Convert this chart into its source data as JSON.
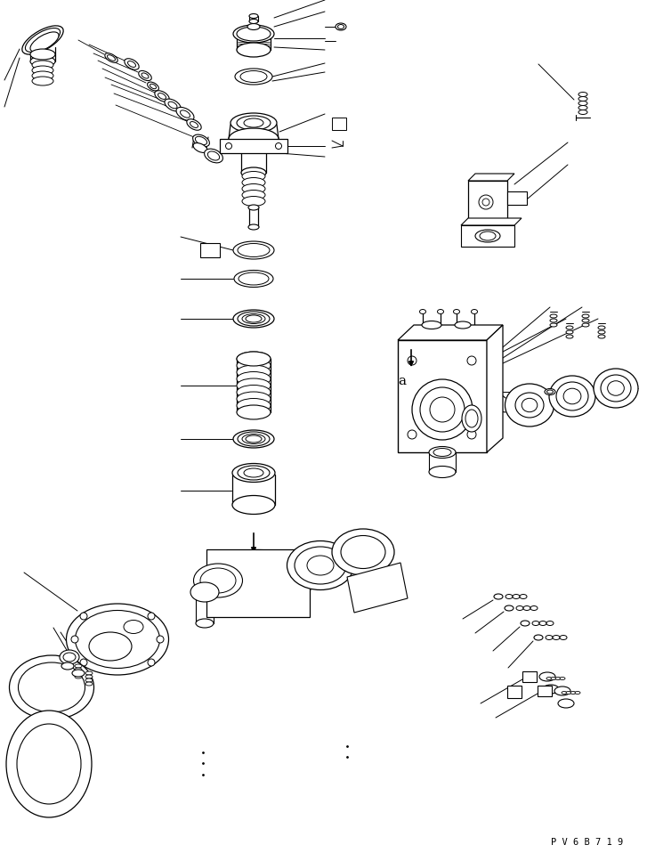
{
  "bg_color": "#ffffff",
  "line_color": "#000000",
  "fig_width": 7.27,
  "fig_height": 9.58,
  "dpi": 100,
  "watermark": "P V 6 B 7 1 9"
}
